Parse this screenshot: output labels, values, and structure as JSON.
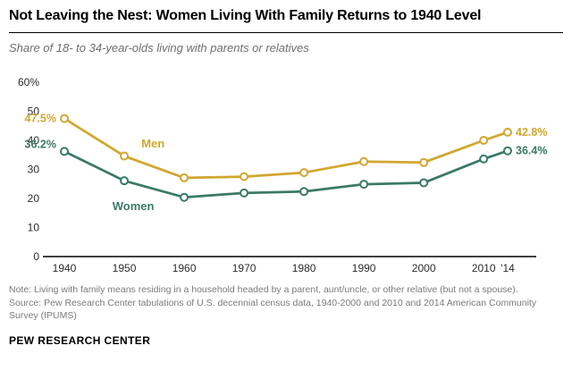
{
  "header": {
    "title": "Not Leaving the Nest: Women Living With Family Returns to 1940 Level",
    "subtitle": "Share of 18- to 34-year-olds living with parents or relatives"
  },
  "chart_data": {
    "type": "line",
    "x": [
      1940,
      1950,
      1960,
      1970,
      1980,
      1990,
      2000,
      2010,
      2014
    ],
    "x_tick_labels": [
      "1940",
      "1950",
      "1960",
      "1970",
      "1980",
      "1990",
      "2000",
      "2010",
      "'14"
    ],
    "series": [
      {
        "name": "Men",
        "color": "#d1a730",
        "values": [
          47.5,
          34.6,
          27.1,
          27.5,
          28.9,
          32.7,
          32.4,
          40.0,
          42.8
        ],
        "start_label": "47.5%",
        "end_label": "42.8%"
      },
      {
        "name": "Women",
        "color": "#3b7a68",
        "values": [
          36.2,
          26.1,
          20.4,
          21.9,
          22.4,
          24.9,
          25.4,
          33.6,
          36.4
        ],
        "start_label": "36.2%",
        "end_label": "36.4%"
      }
    ],
    "ylim": [
      0,
      60
    ],
    "y_ticks": [
      0,
      10,
      20,
      30,
      40,
      50,
      60
    ],
    "y_tick_labels": [
      "0",
      "10",
      "20",
      "30",
      "40",
      "50",
      "60%"
    ],
    "grid": false,
    "legend_position": "inline"
  },
  "footer": {
    "note": "Note: Living with family means residing in a household headed by a parent, aunt/uncle, or other relative (but not a spouse).",
    "source": "Source: Pew Research Center tabulations of U.S. decennial census data, 1940-2000 and 2010 and 2014 American Community Survey (IPUMS)",
    "brand": "PEW RESEARCH CENTER"
  }
}
